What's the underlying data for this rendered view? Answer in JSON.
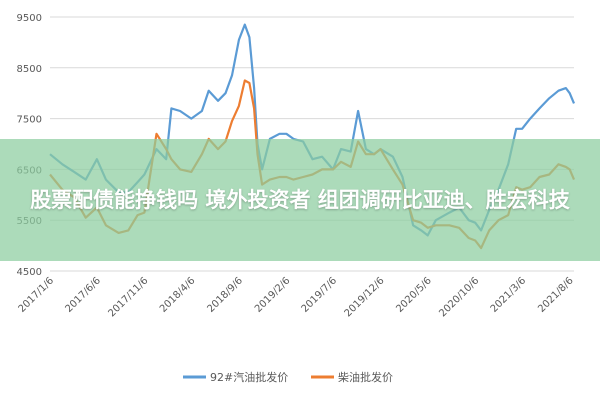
{
  "overlay": {
    "title": "股票配债能挣钱吗 境外投资者 组团调研比亚迪、胜宏科技"
  },
  "colors": {
    "series_1": "#5b9bd5",
    "series_2": "#ed7d31",
    "grid": "#d9d9d9",
    "banner": "#8ccda0"
  },
  "chart_data": {
    "type": "line",
    "xlabel": "",
    "ylabel": "",
    "ylim": [
      4500,
      9500
    ],
    "yticks": [
      4500,
      5500,
      6500,
      7500,
      8500,
      9500
    ],
    "xlim": [
      "2017-01-06",
      "2021-08-20"
    ],
    "xticks": [
      "2017/1/6",
      "2017/6/6",
      "2017/11/6",
      "2018/4/6",
      "2018/9/6",
      "2019/2/6",
      "2019/7/6",
      "2019/12/6",
      "2020/5/6",
      "2020/10/6",
      "2021/3/6",
      "2021/8/6"
    ],
    "grid": true,
    "legend": "bottom",
    "series": [
      {
        "name": "92#汽油批发价",
        "points": [
          [
            "2017-01-06",
            6800
          ],
          [
            "2017-02-15",
            6600
          ],
          [
            "2017-03-25",
            6450
          ],
          [
            "2017-05-01",
            6300
          ],
          [
            "2017-06-06",
            6700
          ],
          [
            "2017-07-05",
            6300
          ],
          [
            "2017-08-15",
            6050
          ],
          [
            "2017-09-15",
            6050
          ],
          [
            "2017-10-15",
            6250
          ],
          [
            "2017-11-06",
            6400
          ],
          [
            "2017-12-15",
            6900
          ],
          [
            "2018-01-15",
            6700
          ],
          [
            "2018-02-01",
            7700
          ],
          [
            "2018-03-01",
            7650
          ],
          [
            "2018-04-06",
            7500
          ],
          [
            "2018-05-10",
            7650
          ],
          [
            "2018-06-01",
            8050
          ],
          [
            "2018-07-01",
            7850
          ],
          [
            "2018-07-25",
            8000
          ],
          [
            "2018-08-15",
            8350
          ],
          [
            "2018-09-06",
            9050
          ],
          [
            "2018-09-25",
            9350
          ],
          [
            "2018-10-10",
            9100
          ],
          [
            "2018-10-25",
            8100
          ],
          [
            "2018-11-05",
            7000
          ],
          [
            "2018-11-20",
            6500
          ],
          [
            "2018-12-15",
            7100
          ],
          [
            "2019-01-15",
            7200
          ],
          [
            "2019-02-06",
            7200
          ],
          [
            "2019-03-01",
            7100
          ],
          [
            "2019-04-01",
            7050
          ],
          [
            "2019-05-01",
            6700
          ],
          [
            "2019-06-01",
            6750
          ],
          [
            "2019-07-06",
            6500
          ],
          [
            "2019-08-01",
            6900
          ],
          [
            "2019-09-01",
            6850
          ],
          [
            "2019-09-25",
            7650
          ],
          [
            "2019-10-20",
            6900
          ],
          [
            "2019-11-15",
            6800
          ],
          [
            "2019-12-06",
            6900
          ],
          [
            "2020-01-15",
            6750
          ],
          [
            "2020-02-15",
            6350
          ],
          [
            "2020-03-20",
            5400
          ],
          [
            "2020-04-15",
            5300
          ],
          [
            "2020-05-06",
            5200
          ],
          [
            "2020-06-01",
            5500
          ],
          [
            "2020-07-15",
            5650
          ],
          [
            "2020-08-15",
            5750
          ],
          [
            "2020-09-15",
            5500
          ],
          [
            "2020-10-06",
            5450
          ],
          [
            "2020-10-25",
            5300
          ],
          [
            "2020-11-20",
            5700
          ],
          [
            "2020-12-20",
            6100
          ],
          [
            "2021-01-20",
            6600
          ],
          [
            "2021-02-15",
            7300
          ],
          [
            "2021-03-06",
            7300
          ],
          [
            "2021-04-01",
            7500
          ],
          [
            "2021-05-01",
            7700
          ],
          [
            "2021-06-01",
            7900
          ],
          [
            "2021-07-01",
            8050
          ],
          [
            "2021-07-25",
            8100
          ],
          [
            "2021-08-06",
            8000
          ],
          [
            "2021-08-20",
            7800
          ]
        ]
      },
      {
        "name": "柴油批发价",
        "points": [
          [
            "2017-01-06",
            6400
          ],
          [
            "2017-02-15",
            6100
          ],
          [
            "2017-03-25",
            5950
          ],
          [
            "2017-05-01",
            5550
          ],
          [
            "2017-06-06",
            5750
          ],
          [
            "2017-07-05",
            5400
          ],
          [
            "2017-08-15",
            5250
          ],
          [
            "2017-09-15",
            5300
          ],
          [
            "2017-10-15",
            5600
          ],
          [
            "2017-11-06",
            5650
          ],
          [
            "2017-12-15",
            7200
          ],
          [
            "2018-01-15",
            6900
          ],
          [
            "2018-02-01",
            6700
          ],
          [
            "2018-03-01",
            6500
          ],
          [
            "2018-04-06",
            6450
          ],
          [
            "2018-05-10",
            6800
          ],
          [
            "2018-06-01",
            7100
          ],
          [
            "2018-07-01",
            6900
          ],
          [
            "2018-07-25",
            7050
          ],
          [
            "2018-08-15",
            7450
          ],
          [
            "2018-09-06",
            7750
          ],
          [
            "2018-09-25",
            8250
          ],
          [
            "2018-10-10",
            8200
          ],
          [
            "2018-10-25",
            7700
          ],
          [
            "2018-11-05",
            6800
          ],
          [
            "2018-11-20",
            6200
          ],
          [
            "2018-12-15",
            6300
          ],
          [
            "2019-01-15",
            6350
          ],
          [
            "2019-02-06",
            6350
          ],
          [
            "2019-03-01",
            6300
          ],
          [
            "2019-04-01",
            6350
          ],
          [
            "2019-05-01",
            6400
          ],
          [
            "2019-06-01",
            6500
          ],
          [
            "2019-07-06",
            6500
          ],
          [
            "2019-08-01",
            6650
          ],
          [
            "2019-09-01",
            6550
          ],
          [
            "2019-09-25",
            7050
          ],
          [
            "2019-10-20",
            6800
          ],
          [
            "2019-11-15",
            6800
          ],
          [
            "2019-12-06",
            6900
          ],
          [
            "2020-01-15",
            6500
          ],
          [
            "2020-02-15",
            6200
          ],
          [
            "2020-03-20",
            5500
          ],
          [
            "2020-04-15",
            5450
          ],
          [
            "2020-05-06",
            5350
          ],
          [
            "2020-06-01",
            5400
          ],
          [
            "2020-07-15",
            5400
          ],
          [
            "2020-08-15",
            5350
          ],
          [
            "2020-09-15",
            5150
          ],
          [
            "2020-10-06",
            5100
          ],
          [
            "2020-10-25",
            4950
          ],
          [
            "2020-11-20",
            5300
          ],
          [
            "2020-12-20",
            5500
          ],
          [
            "2021-01-20",
            5600
          ],
          [
            "2021-02-15",
            6150
          ],
          [
            "2021-03-06",
            6100
          ],
          [
            "2021-04-01",
            6150
          ],
          [
            "2021-05-01",
            6350
          ],
          [
            "2021-06-01",
            6400
          ],
          [
            "2021-07-01",
            6600
          ],
          [
            "2021-07-25",
            6550
          ],
          [
            "2021-08-06",
            6500
          ],
          [
            "2021-08-20",
            6300
          ]
        ]
      }
    ]
  }
}
